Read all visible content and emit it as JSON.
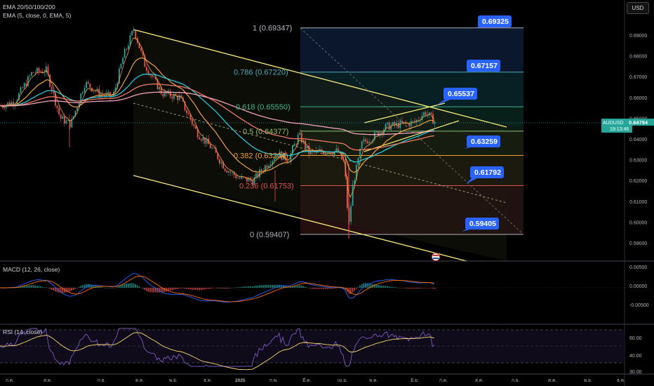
{
  "header": {
    "ema_label": "EMA 20/50/100/200",
    "ema5_label": "EMA (5, close, 0, EMA, 5)",
    "currency_button": "USD"
  },
  "fib_levels": [
    {
      "ratio": "1",
      "price": "0.69347",
      "label": "1 (0.69347)",
      "color": "#b2b5be"
    },
    {
      "ratio": "0.786",
      "price": "0.67220",
      "label": "0.786 (0.67220)",
      "color": "#4fa8b8"
    },
    {
      "ratio": "0.618",
      "price": "0.65550",
      "label": "0.618 (0.65550)",
      "color": "#3fb68b"
    },
    {
      "ratio": "0.5",
      "price": "0.64377",
      "label": "0.5 (0.64377)",
      "color": "#8fbf6f"
    },
    {
      "ratio": "0.382",
      "price": "0.63204",
      "label": "0.382 (0.63204)",
      "color": "#f0a030"
    },
    {
      "ratio": "0.236",
      "price": "0.61753",
      "label": "0.236 (0.61753)",
      "color": "#e05050"
    },
    {
      "ratio": "0",
      "price": "0.59407",
      "label": "0 (0.59407)",
      "color": "#b2b5be"
    }
  ],
  "callouts": [
    "0.69325",
    "0.67157",
    "0.65537",
    "0.63259",
    "0.61792",
    "0.59405"
  ],
  "price_axis": [
    "0.69000",
    "0.68000",
    "0.67000",
    "0.66000",
    "0.65000",
    "0.64000",
    "0.63000",
    "0.62000",
    "0.61000",
    "0.60000",
    "0.59000"
  ],
  "symbol_tag": {
    "symbol": "AUDUSD",
    "price": "0.64794",
    "time": "19:13:46"
  },
  "macd": {
    "label": "MACD (12, 26, close)",
    "axis": [
      "0.00500",
      "0.00000",
      "-0.00500"
    ]
  },
  "rsi": {
    "label": "RSI (14, close)",
    "axis": [
      "60.00",
      "40.00",
      "30.00"
    ]
  },
  "time_axis": [
    "ก.ค.",
    "ส.ค.",
    "ก.ย.",
    "ต.ค.",
    "พ.ย.",
    "ธ.ค.",
    "2025",
    "ก.พ.",
    "มี.ค.",
    "เม.ย.",
    "พ.ค.",
    "มิ.ย.",
    "ก.ค.",
    "ส.ค.",
    "ก.ย.",
    "ต.ค.",
    "พ.ย.",
    "ธ.ค."
  ],
  "colors": {
    "up": "#26a69a",
    "down": "#ef5350",
    "channel": "#f5e97a",
    "ema20": "#f0a040",
    "ema50": "#f07860",
    "ema100": "#26c6da",
    "ema200": "#f0a0b8",
    "callout": "#2962ff",
    "macd_line": "#2962ff",
    "signal_line": "#ff6d00",
    "rsi_line": "#7e57c2",
    "rsi_ma": "#f5d76e"
  }
}
